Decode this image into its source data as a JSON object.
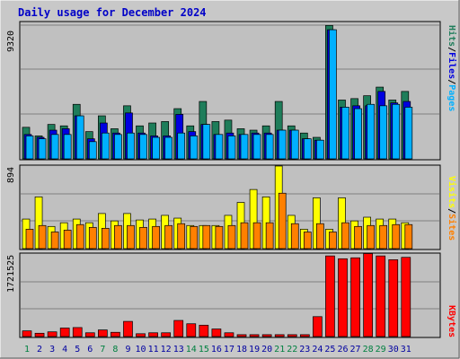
{
  "title": "Daily usage for December 2024",
  "days": [
    "1",
    "2",
    "3",
    "4",
    "5",
    "6",
    "7",
    "8",
    "9",
    "10",
    "11",
    "12",
    "13",
    "14",
    "15",
    "16",
    "17",
    "18",
    "19",
    "20",
    "21",
    "22",
    "23",
    "24",
    "25",
    "26",
    "27",
    "28",
    "29",
    "30",
    "31"
  ],
  "weekend_days": [
    1,
    7,
    8,
    14,
    15,
    21,
    22,
    28,
    29
  ],
  "colors": {
    "hits": "#1e7d5a",
    "files": "#0000e0",
    "pages": "#00b0ff",
    "visits": "#ffff00",
    "sites": "#ff8000",
    "kbytes": "#ff0000",
    "day_normal": "#0000a0",
    "day_weekend": "#008040"
  },
  "top_max_label": "9320",
  "mid_max_label": "894",
  "bot_max_label": "1721525",
  "right_labels": {
    "pages": "Pages",
    "files": "Files",
    "hits": "Hits",
    "sites": "Sites",
    "visits": "Visits",
    "kbytes": "KBytes",
    "sep": "/"
  },
  "chart_data": [
    {
      "type": "bar",
      "ylim": [
        0,
        9320
      ],
      "series": [
        {
          "name": "Hits",
          "values": [
            2200,
            1600,
            2400,
            2300,
            3800,
            1900,
            3000,
            2100,
            3700,
            2300,
            2500,
            2600,
            3500,
            2300,
            4000,
            2600,
            2700,
            2100,
            2000,
            2300,
            4000,
            2300,
            1800,
            1500,
            9300,
            4100,
            4200,
            4400,
            5000,
            4100,
            4700
          ]
        },
        {
          "name": "Files",
          "values": [
            1700,
            1500,
            2000,
            2100,
            3000,
            1400,
            2500,
            1800,
            3200,
            1800,
            1600,
            1600,
            3100,
            1900,
            2400,
            1700,
            1800,
            1700,
            1800,
            1800,
            2000,
            2000,
            1400,
            1300,
            9000,
            3600,
            3700,
            3700,
            4700,
            3900,
            4000
          ]
        },
        {
          "name": "Pages",
          "values": [
            1600,
            1400,
            1700,
            1700,
            3000,
            1200,
            1800,
            1700,
            1800,
            1700,
            1500,
            1500,
            1800,
            1600,
            2400,
            1700,
            1600,
            1700,
            1700,
            1700,
            2000,
            2000,
            1400,
            1300,
            9000,
            3600,
            3500,
            3800,
            3700,
            3800,
            3600
          ]
        }
      ]
    },
    {
      "type": "bar",
      "ylim": [
        0,
        894
      ],
      "series": [
        {
          "name": "Visits",
          "values": [
            320,
            560,
            240,
            280,
            320,
            280,
            380,
            300,
            380,
            310,
            320,
            360,
            330,
            250,
            250,
            250,
            360,
            500,
            640,
            560,
            894,
            360,
            210,
            550,
            210,
            550,
            300,
            340,
            320,
            320,
            280
          ]
        },
        {
          "name": "Sites",
          "values": [
            210,
            250,
            180,
            200,
            260,
            230,
            220,
            250,
            250,
            230,
            240,
            250,
            270,
            240,
            250,
            240,
            250,
            280,
            280,
            280,
            600,
            270,
            180,
            270,
            180,
            280,
            240,
            250,
            250,
            260,
            260
          ]
        }
      ]
    },
    {
      "type": "bar",
      "ylim": [
        0,
        1721525
      ],
      "series": [
        {
          "name": "KBytes",
          "values": [
            120000,
            70000,
            100000,
            180000,
            190000,
            80000,
            140000,
            90000,
            320000,
            60000,
            80000,
            80000,
            340000,
            270000,
            240000,
            160000,
            80000,
            40000,
            40000,
            40000,
            40000,
            40000,
            40000,
            420000,
            1700000,
            1640000,
            1660000,
            1750000,
            1700000,
            1620000,
            1670000
          ]
        }
      ]
    }
  ]
}
